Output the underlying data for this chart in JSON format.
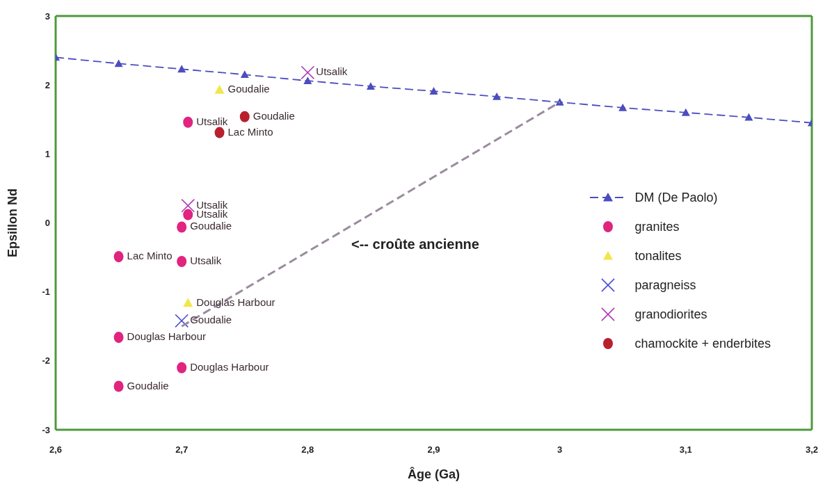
{
  "chart_data": {
    "type": "scatter",
    "xlabel": "Âge (Ga)",
    "ylabel": "Epsillon Nd",
    "xlim": [
      2.6,
      3.2
    ],
    "xticks": [
      {
        "value": 2.6,
        "label": "2,6"
      },
      {
        "value": 2.7,
        "label": "2,7"
      },
      {
        "value": 2.8,
        "label": "2,8"
      },
      {
        "value": 2.9,
        "label": "2,9"
      },
      3,
      {
        "value": 3.1,
        "label": "3,1"
      },
      {
        "value": 3.2,
        "label": "3,2"
      }
    ],
    "ylim": [
      -3,
      3
    ],
    "yticks": [
      -3,
      -2,
      -1,
      0,
      1,
      2,
      3
    ],
    "grid": false,
    "legend": "right",
    "series": [
      {
        "name": "DM (De Paolo)",
        "type": "line",
        "color": "#4b4dbf",
        "marker": "triangle",
        "line_style": "dashed",
        "x": [
          2.6,
          2.65,
          2.7,
          2.75,
          2.8,
          2.85,
          2.9,
          2.95,
          3.0,
          3.05,
          3.1,
          3.15,
          3.2
        ],
        "values": [
          2.4,
          2.31,
          2.23,
          2.15,
          2.06,
          1.98,
          1.91,
          1.83,
          1.75,
          1.67,
          1.6,
          1.53,
          1.45
        ]
      },
      {
        "name": "granites",
        "color": "#e0247f",
        "marker": "circle",
        "x": [
          2.705,
          2.705,
          2.7,
          2.65,
          2.7,
          2.65,
          2.7,
          2.65
        ],
        "values": [
          1.46,
          0.12,
          -0.06,
          -0.49,
          -0.56,
          -1.66,
          -2.1,
          -2.37
        ]
      },
      {
        "name": "tonalites",
        "color": "#f2e64a",
        "marker": "triangle",
        "x": [
          2.73,
          2.705
        ],
        "values": [
          1.93,
          -1.16
        ]
      },
      {
        "name": "paragneiss",
        "color": "#4b4dd6",
        "marker": "cross",
        "x": [
          2.7
        ],
        "values": [
          -1.42
        ]
      },
      {
        "name": "granodiorites",
        "color": "#b03ab8",
        "marker": "cross",
        "x": [
          2.8,
          2.705
        ],
        "values": [
          2.18,
          0.25
        ]
      },
      {
        "name": "chamockite + enderbites",
        "color": "#b8202e",
        "marker": "circle",
        "x": [
          2.75,
          2.73
        ],
        "values": [
          1.54,
          1.31
        ]
      },
      {
        "type": "line",
        "color": "#9a8c9e",
        "marker": "none",
        "line_style": "dashed",
        "x": [
          2.7,
          3.0
        ],
        "values": [
          -1.5,
          1.75
        ]
      }
    ],
    "annotations": [
      {
        "text": "Utsalik",
        "x": 2.8,
        "y": 2.18
      },
      {
        "text": "Goudalie",
        "x": 2.73,
        "y": 1.93
      },
      {
        "text": "Utsalik",
        "x": 2.705,
        "y": 1.46
      },
      {
        "text": "Goudalie",
        "x": 2.75,
        "y": 1.54
      },
      {
        "text": "Lac Minto",
        "x": 2.73,
        "y": 1.31
      },
      {
        "text": "Utsalik",
        "x": 2.705,
        "y": 0.25
      },
      {
        "text": "Utsalik",
        "x": 2.705,
        "y": 0.12
      },
      {
        "text": "Goudalie",
        "x": 2.7,
        "y": -0.06
      },
      {
        "text": "Lac Minto",
        "x": 2.65,
        "y": -0.49
      },
      {
        "text": "Utsalik",
        "x": 2.7,
        "y": -0.56
      },
      {
        "text": "Douglas Harbour",
        "x": 2.705,
        "y": -1.16
      },
      {
        "text": "Goudalie",
        "x": 2.7,
        "y": -1.42
      },
      {
        "text": "Douglas Harbour",
        "x": 2.65,
        "y": -1.66
      },
      {
        "text": "Douglas Harbour",
        "x": 2.7,
        "y": -2.1
      },
      {
        "text": "Goudalie",
        "x": 2.65,
        "y": -2.37
      },
      "<-- croûte ancienne"
    ]
  }
}
